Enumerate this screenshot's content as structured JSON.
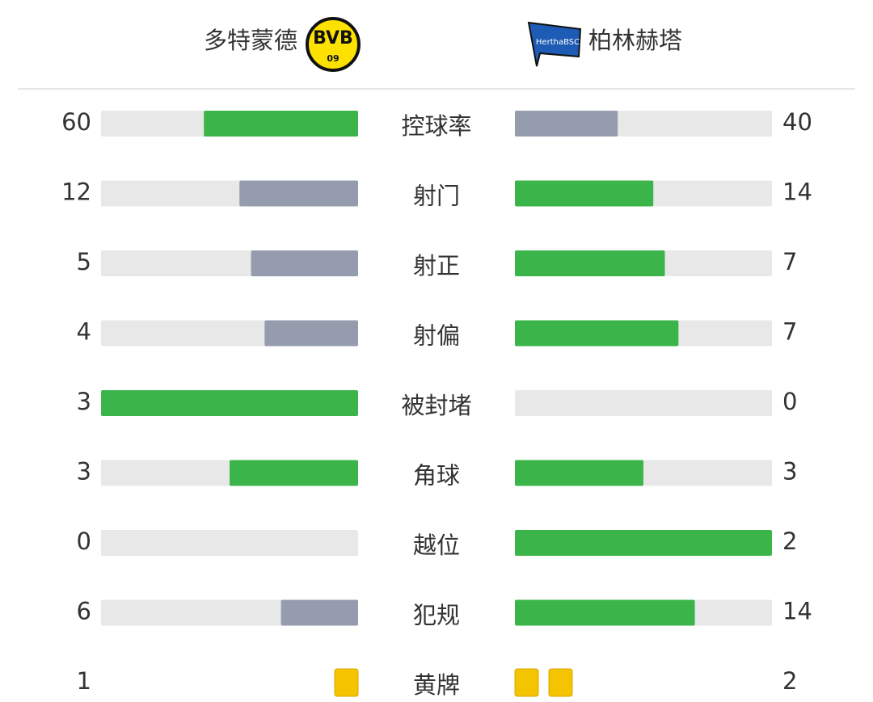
{
  "header": {
    "home": {
      "name": "多特蒙德",
      "logo_top": "BVB",
      "logo_bottom": "09"
    },
    "away": {
      "name": "柏林赫塔",
      "logo_text": "HerthaBSC"
    }
  },
  "stats": [
    {
      "label": "控球率",
      "home": 60,
      "away": 40
    },
    {
      "label": "射门",
      "home": 12,
      "away": 14
    },
    {
      "label": "射正",
      "home": 5,
      "away": 7
    },
    {
      "label": "射偏",
      "home": 4,
      "away": 7
    },
    {
      "label": "被封堵",
      "home": 3,
      "away": 0
    },
    {
      "label": "角球",
      "home": 3,
      "away": 3
    },
    {
      "label": "越位",
      "home": 0,
      "away": 2
    },
    {
      "label": "犯规",
      "home": 6,
      "away": 14
    }
  ],
  "yellow_cards": {
    "label": "黄牌",
    "home": 1,
    "away": 2
  }
}
